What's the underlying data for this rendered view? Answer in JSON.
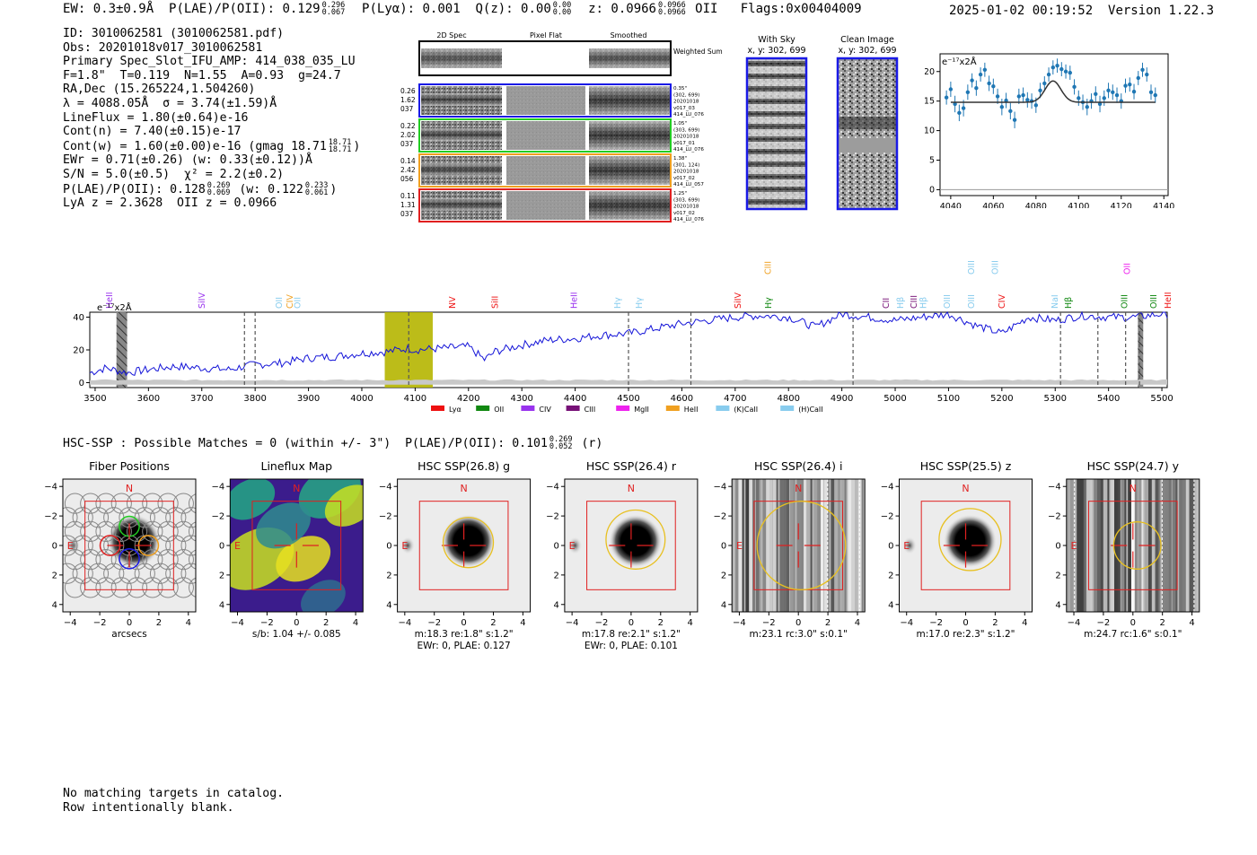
{
  "header": {
    "ew": "EW: 0.3±0.9Å",
    "plae_label": "P(LAE)/P(OII): 0.129",
    "plae_hi": "0.296",
    "plae_lo": "0.067",
    "plya": "P(Lyα): 0.001",
    "qz_label": "Q(z): 0.00",
    "qz_hi": "0.00",
    "qz_lo": "0.00",
    "z_label": "z: 0.0966",
    "z_hi": "0.0966",
    "z_lo": "0.0966",
    "z_line": "OII",
    "flags": "Flags:0x00404009",
    "timestamp": "2025-01-02 00:19:52",
    "version": "Version 1.22.3"
  },
  "info": {
    "id": "ID: 3010062581 (3010062581.pdf)",
    "obs": "Obs: 20201018v017_3010062581",
    "primary": "Primary Spec_Slot_IFU_AMP: 414_038_035_LU",
    "fwhm": "F=1.8\"  T=0.119  N=1.55  A=0.93  g=24.7",
    "radec": "RA,Dec (15.265224,1.504260)",
    "lambda": "λ = 4088.05Å  σ = 3.74(±1.59)Å",
    "lineflux": "LineFlux = 1.80(±0.64)e-16",
    "contn": "Cont(n) = 7.40(±0.15)e-17",
    "contw": "Cont(w) = 1.60(±0.00)e-16 (gmag 18.71",
    "contw_hi": "18.71",
    "contw_lo": "18.71",
    "ewr": "EWr = 0.71(±0.26) (w: 0.33(±0.12))Å",
    "sn": "S/N = 5.0(±0.5)  χ² = 2.2(±0.2)",
    "plae": "P(LAE)/P(OII): 0.128",
    "plae_hi": "0.269",
    "plae_lo": "0.069",
    "plae_w": "(w: 0.122",
    "plae_w_hi": "0.233",
    "plae_w_lo": "0.061",
    "lya": "LyA z = 2.3628  OII z = 0.0966"
  },
  "cutouts": {
    "col_headers": [
      "2D Spec",
      "Pixel Flat",
      "Smoothed"
    ],
    "weighted_label": "Weighted Sum",
    "rows": [
      {
        "left": [
          "0.26",
          "1.62",
          "037"
        ],
        "right": [
          "0.35\"",
          "(302, 699)",
          "20201018",
          "v017_03",
          "414_LU_076"
        ],
        "color": "#1a1ae6"
      },
      {
        "left": [
          "0.22",
          "2.02",
          "037"
        ],
        "right": [
          "1.05\"",
          "(303, 699)",
          "20201018",
          "v017_01",
          "414_LU_076"
        ],
        "color": "#22cc22"
      },
      {
        "left": [
          "0.14",
          "2.42",
          "056"
        ],
        "right": [
          "1.38\"",
          "(301, 124)",
          "20201018",
          "v017_02",
          "414_LU_057"
        ],
        "color": "#f0a020"
      },
      {
        "left": [
          "0.11",
          "1.31",
          "037"
        ],
        "right": [
          "1.25\"",
          "(303, 699)",
          "20201018",
          "v017_02",
          "414_LU_076"
        ],
        "color": "#e02020"
      }
    ],
    "with_sky_title": "With Sky",
    "with_sky_coords": "x, y: 302, 699",
    "clean_title": "Clean Image",
    "clean_coords": "x, y: 302, 699"
  },
  "line_fit": {
    "unit_label": "e⁻¹⁷x2Å",
    "x_ticks": [
      "4040",
      "4060",
      "4080",
      "4100",
      "4120",
      "4140"
    ],
    "y_ticks": [
      "0",
      "5",
      "10",
      "15",
      "20"
    ],
    "xlim": [
      4035,
      4142
    ],
    "ylim": [
      -1,
      23
    ],
    "continuum": 14.8,
    "gauss_center": 4088,
    "gauss_amp": 3.6,
    "gauss_sigma": 3.7,
    "x": [
      4038,
      4040,
      4042,
      4044,
      4046,
      4048,
      4050,
      4052,
      4054,
      4056,
      4058,
      4060,
      4062,
      4064,
      4066,
      4068,
      4070,
      4072,
      4074,
      4076,
      4078,
      4080,
      4082,
      4084,
      4086,
      4088,
      4090,
      4092,
      4094,
      4096,
      4098,
      4100,
      4102,
      4104,
      4106,
      4108,
      4110,
      4112,
      4114,
      4116,
      4118,
      4120,
      4122,
      4124,
      4126,
      4128,
      4130,
      4132,
      4134,
      4136
    ],
    "y": [
      15.6,
      17.0,
      14.5,
      13.0,
      13.8,
      16.5,
      18.5,
      17.2,
      19.5,
      20.3,
      18.0,
      17.5,
      15.8,
      14.0,
      15.1,
      13.3,
      11.8,
      15.8,
      16.0,
      15.2,
      15.0,
      14.3,
      16.8,
      18.0,
      19.5,
      20.7,
      21.0,
      20.4,
      20.0,
      19.8,
      17.4,
      15.5,
      14.8,
      14.0,
      15.0,
      16.2,
      14.5,
      15.5,
      16.8,
      16.5,
      16.0,
      15.0,
      17.6,
      17.8,
      16.6,
      18.9,
      20.3,
      19.5,
      16.5,
      16.0
    ],
    "err": [
      1.2,
      1.3,
      1.4,
      1.4,
      1.4,
      1.3,
      1.2,
      1.3,
      1.2,
      1.2,
      1.3,
      1.3,
      1.3,
      1.4,
      1.3,
      1.4,
      1.4,
      1.3,
      1.3,
      1.3,
      1.3,
      1.3,
      1.3,
      1.2,
      1.2,
      1.2,
      1.2,
      1.2,
      1.2,
      1.2,
      1.3,
      1.3,
      1.3,
      1.4,
      1.3,
      1.3,
      1.4,
      1.3,
      1.3,
      1.3,
      1.3,
      1.3,
      1.2,
      1.2,
      1.3,
      1.2,
      1.2,
      1.2,
      1.3,
      1.3
    ]
  },
  "spectrum": {
    "unit_label": "e⁻¹⁷x2Å",
    "x_ticks": [
      "3500",
      "3600",
      "3700",
      "3800",
      "3900",
      "4000",
      "4100",
      "4200",
      "4300",
      "4400",
      "4500",
      "4600",
      "4700",
      "4800",
      "4900",
      "5000",
      "5100",
      "5200",
      "5300",
      "5400",
      "5500"
    ],
    "y_ticks": [
      "0",
      "20",
      "40"
    ],
    "xlim": [
      3490,
      5510
    ],
    "ylim": [
      -3,
      43
    ],
    "anchors_x": [
      3490,
      3520,
      3560,
      3600,
      3650,
      3700,
      3750,
      3780,
      3800,
      3850,
      3900,
      3950,
      4000,
      4050,
      4088,
      4100,
      4150,
      4200,
      4230,
      4250,
      4300,
      4350,
      4400,
      4450,
      4500,
      4550,
      4600,
      4650,
      4700,
      4750,
      4800,
      4850,
      4900,
      4950,
      5000,
      5050,
      5100,
      5150,
      5200,
      5250,
      5300,
      5350,
      5400,
      5450,
      5500,
      5510
    ],
    "anchors_y": [
      6,
      9,
      6,
      8,
      10,
      9,
      8,
      10,
      11,
      12,
      15,
      16,
      18,
      19,
      21,
      20,
      21,
      22,
      14,
      19,
      23,
      26,
      27,
      29,
      30,
      33,
      36,
      38,
      40,
      41,
      40,
      34,
      42,
      40,
      38,
      40,
      42,
      35,
      30,
      40,
      38,
      41,
      40,
      40,
      42,
      42
    ],
    "shaded_bands": [
      [
        3540,
        3560
      ],
      [
        5455,
        5465
      ]
    ],
    "highlight_band": [
      4043,
      4133
    ],
    "dashed_lines": [
      3780,
      3800,
      4088,
      4500,
      4617,
      4921,
      5310,
      5380,
      5432,
      5458
    ],
    "legend": [
      {
        "label": "Lyα",
        "color": "#ee1111"
      },
      {
        "label": "OII",
        "color": "#118811"
      },
      {
        "label": "CIV",
        "color": "#9933ee"
      },
      {
        "label": "CIII",
        "color": "#771177"
      },
      {
        "label": "MgII",
        "color": "#ee22ee"
      },
      {
        "label": "HeII",
        "color": "#f0a020"
      },
      {
        "label": "(K)CaII",
        "color": "#88ccee"
      },
      {
        "label": "(H)CaII",
        "color": "#88ccee"
      }
    ],
    "line_labels": [
      {
        "label": "HeII",
        "x": 3527,
        "tier": 0,
        "color": "#9933ee"
      },
      {
        "label": "SiIV",
        "x": 3700,
        "tier": 0,
        "color": "#9933ee"
      },
      {
        "label": "OII",
        "x": 3845,
        "tier": 0,
        "color": "#88ccee"
      },
      {
        "label": "CIV",
        "x": 3865,
        "tier": 0,
        "color": "#f0a020"
      },
      {
        "label": "OII",
        "x": 3880,
        "tier": 0,
        "color": "#88ccee"
      },
      {
        "label": "NV",
        "x": 4170,
        "tier": 0,
        "color": "#ee1111"
      },
      {
        "label": "SiII",
        "x": 4250,
        "tier": 0,
        "color": "#ee1111"
      },
      {
        "label": "HeII",
        "x": 4398,
        "tier": 0,
        "color": "#9933ee"
      },
      {
        "label": "Hγ",
        "x": 4480,
        "tier": 0,
        "color": "#88ccee"
      },
      {
        "label": "Hγ",
        "x": 4520,
        "tier": 0,
        "color": "#88ccee"
      },
      {
        "label": "SiIV",
        "x": 4705,
        "tier": 0,
        "color": "#ee1111"
      },
      {
        "label": "CIII",
        "x": 4762,
        "tier": 1,
        "color": "#f0a020"
      },
      {
        "label": "Hγ",
        "x": 4763,
        "tier": 0,
        "color": "#118811"
      },
      {
        "label": "CII",
        "x": 4983,
        "tier": 0,
        "color": "#771177"
      },
      {
        "label": "Hβ",
        "x": 5010,
        "tier": 0,
        "color": "#88ccee"
      },
      {
        "label": "CIII",
        "x": 5035,
        "tier": 0,
        "color": "#771177"
      },
      {
        "label": "Hβ",
        "x": 5053,
        "tier": 0,
        "color": "#88ccee"
      },
      {
        "label": "OIII",
        "x": 5098,
        "tier": 0,
        "color": "#88ccee"
      },
      {
        "label": "OIII",
        "x": 5143,
        "tier": 0,
        "color": "#88ccee"
      },
      {
        "label": "OIII",
        "x": 5143,
        "tier": 1,
        "color": "#88ccee"
      },
      {
        "label": "OIII",
        "x": 5188,
        "tier": 1,
        "color": "#88ccee"
      },
      {
        "label": "CIV",
        "x": 5200,
        "tier": 0,
        "color": "#ee1111"
      },
      {
        "label": "NaI",
        "x": 5300,
        "tier": 0,
        "color": "#88ccee"
      },
      {
        "label": "Hβ",
        "x": 5325,
        "tier": 0,
        "color": "#118811"
      },
      {
        "label": "OIII",
        "x": 5430,
        "tier": 0,
        "color": "#118811"
      },
      {
        "label": "OII",
        "x": 5435,
        "tier": 1,
        "color": "#ee22ee"
      },
      {
        "label": "OIII",
        "x": 5485,
        "tier": 0,
        "color": "#118811"
      },
      {
        "label": "HeII",
        "x": 5512,
        "tier": 0,
        "color": "#ee1111"
      }
    ]
  },
  "hsc_line": {
    "text": "HSC-SSP : Possible Matches = 0 (within +/- 3\")  P(LAE)/P(OII): 0.101",
    "hi": "0.269",
    "lo": "0.052",
    "band": "(r)"
  },
  "cutout_panels": [
    {
      "title": "Fiber Positions",
      "caption1": "arcsecs",
      "caption2": "",
      "kind": "fibers",
      "circle_r": 0,
      "circle_dx": 0,
      "circle_dy": 0
    },
    {
      "title": "Lineflux Map",
      "caption1": "s/b: 1.04 +/- 0.085",
      "caption2": "",
      "kind": "lineflux",
      "circle_r": 0,
      "circle_dx": 0,
      "circle_dy": 0
    },
    {
      "title": "HSC SSP(26.8) g",
      "caption1": "m:18.3  re:1.8\"  s:1.2\"",
      "caption2": "EWr: 0, PLAE: 0.127",
      "kind": "galaxy",
      "circle_r": 1.7,
      "circle_dx": 0.3,
      "circle_dy": 0.2
    },
    {
      "title": "HSC SSP(26.4) r",
      "caption1": "m:17.8  re:2.1\"  s:1.2\"",
      "caption2": "EWr: 0, PLAE: 0.101",
      "kind": "galaxy",
      "circle_r": 2.0,
      "circle_dx": 0.3,
      "circle_dy": 0.4
    },
    {
      "title": "HSC SSP(26.4) i",
      "caption1": "m:23.1 rc:3.0\"  s:0.1\"",
      "caption2": "",
      "kind": "stripes",
      "circle_r": 3.0,
      "circle_dx": 0.2,
      "circle_dy": 0
    },
    {
      "title": "HSC SSP(25.5) z",
      "caption1": "m:17.0  re:2.3\"  s:1.2\"",
      "caption2": "",
      "kind": "galaxy",
      "circle_r": 2.1,
      "circle_dx": 0.3,
      "circle_dy": 0.4
    },
    {
      "title": "HSC SSP(24.7) y",
      "caption1": "m:24.7 rc:1.6\"  s:0.1\"",
      "caption2": "",
      "kind": "stripes",
      "circle_r": 1.6,
      "circle_dx": 0.3,
      "circle_dy": 0
    }
  ],
  "cutout_axis": {
    "ticks": [
      "−4",
      "−2",
      "0",
      "2",
      "4"
    ],
    "north": "N",
    "east": "E"
  },
  "catalog_note": {
    "line1": "No matching targets in catalog.",
    "line2": "Row intentionally blank."
  },
  "chart_data": [
    {
      "type": "scatter",
      "title": "",
      "xlabel": "",
      "ylabel": "e⁻¹⁷x2Å",
      "xlim": [
        4035,
        4142
      ],
      "ylim": [
        -1,
        23
      ],
      "series": [
        {
          "values_ref": "line_fit.y",
          "x_ref": "line_fit.x"
        }
      ]
    },
    {
      "type": "line",
      "title": "",
      "xlabel": "",
      "ylabel": "e⁻¹⁷x2Å",
      "xlim": [
        3490,
        5510
      ],
      "ylim": [
        -3,
        43
      ],
      "series": [
        {
          "x_ref": "spectrum.anchors_x",
          "values_ref": "spectrum.anchors_y"
        }
      ]
    }
  ]
}
